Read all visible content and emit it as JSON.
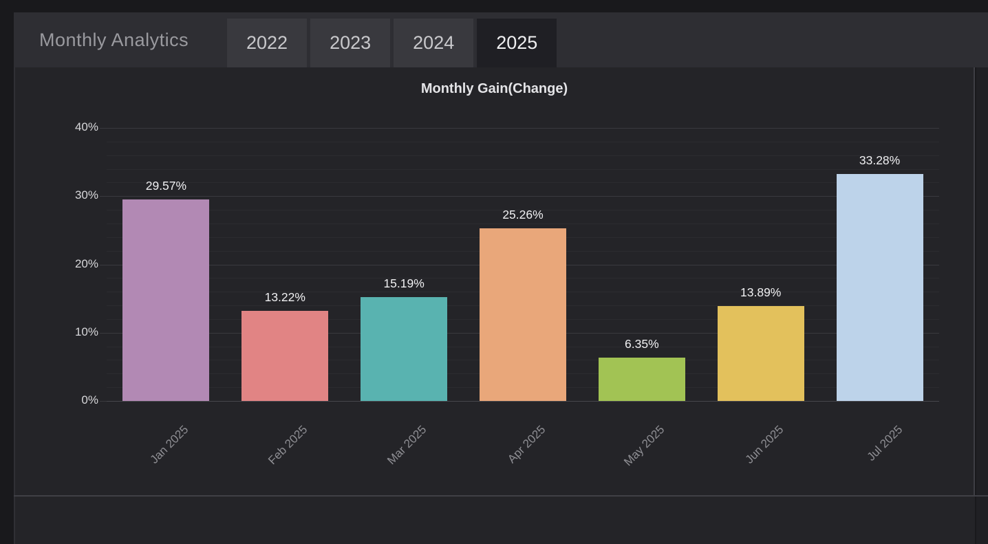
{
  "header": {
    "title": "Monthly Analytics",
    "tabs": [
      {
        "label": "2022",
        "active": false
      },
      {
        "label": "2023",
        "active": false
      },
      {
        "label": "2024",
        "active": false
      },
      {
        "label": "2025",
        "active": true
      }
    ]
  },
  "chart_data": {
    "type": "bar",
    "title": "Monthly Gain(Change)",
    "categories": [
      "Jan 2025",
      "Feb 2025",
      "Mar 2025",
      "Apr 2025",
      "May 2025",
      "Jun 2025",
      "Jul 2025"
    ],
    "values": [
      29.57,
      13.22,
      15.19,
      25.26,
      6.35,
      13.89,
      33.28
    ],
    "value_labels": [
      "29.57%",
      "13.22%",
      "15.19%",
      "25.26%",
      "6.35%",
      "13.89%",
      "33.28%"
    ],
    "bar_colors": [
      "#b289b4",
      "#e18484",
      "#59b3b0",
      "#e9a77a",
      "#a2c354",
      "#e3c15c",
      "#bdd3ea"
    ],
    "xlabel": "",
    "ylabel": "",
    "ylim": [
      0,
      40
    ],
    "y_ticks": [
      {
        "value": 0,
        "label": "0%"
      },
      {
        "value": 10,
        "label": "10%"
      },
      {
        "value": 20,
        "label": "20%"
      },
      {
        "value": 30,
        "label": "30%"
      },
      {
        "value": 40,
        "label": "40%"
      }
    ],
    "minor_grid_step": 2,
    "grid": true,
    "legend_position": "none"
  },
  "colors": {
    "page_bg": "#19191c",
    "header_bg": "#2e2e33",
    "tab_bg": "#39393e",
    "tab_active_bg": "#1f1f24",
    "panel_bg": "#242428",
    "grid_major": "#3a3a3f",
    "grid_minor": "#2c2c30",
    "divider": "#404046",
    "axis_label_text": "#d8d8db",
    "x_label_text": "#8f8f94",
    "value_label_text": "#f0f0f2"
  }
}
